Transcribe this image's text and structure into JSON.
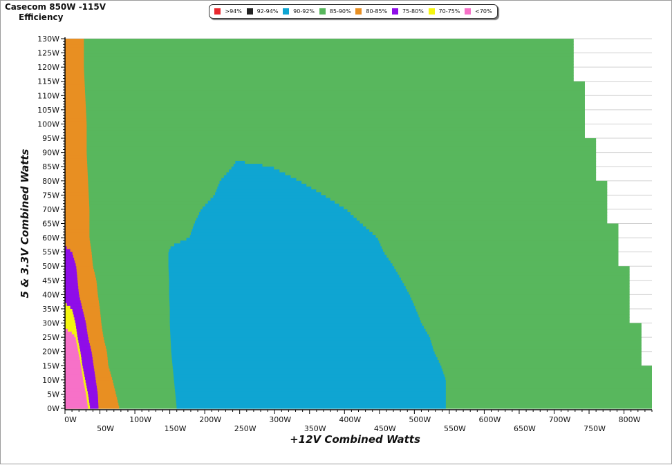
{
  "chart_data": {
    "type": "heatmap",
    "title": "Casecom 850W -115V",
    "subtitle": "Efficiency",
    "xlabel": "+12V Combined Watts",
    "ylabel": "5 & 3.3V Combined Watts",
    "xlim": [
      0,
      840
    ],
    "ylim": [
      0,
      130
    ],
    "x_ticks": [
      0,
      50,
      100,
      150,
      200,
      250,
      300,
      350,
      400,
      450,
      500,
      550,
      600,
      650,
      700,
      750,
      800
    ],
    "x_tick_labels": [
      "0W",
      "50W",
      "100W",
      "150W",
      "200W",
      "250W",
      "300W",
      "350W",
      "400W",
      "450W",
      "500W",
      "550W",
      "600W",
      "650W",
      "700W",
      "750W",
      "800W"
    ],
    "y_ticks": [
      0,
      5,
      10,
      15,
      20,
      25,
      30,
      35,
      40,
      45,
      50,
      55,
      60,
      65,
      70,
      75,
      80,
      85,
      90,
      95,
      100,
      105,
      110,
      115,
      120,
      125,
      130
    ],
    "y_tick_labels": [
      "0W",
      "5W",
      "10W",
      "15W",
      "20W",
      "25W",
      "30W",
      "35W",
      "40W",
      "45W",
      "50W",
      "55W",
      "60W",
      "65W",
      "70W",
      "75W",
      "80W",
      "85W",
      "90W",
      "95W",
      "100W",
      "105W",
      "110W",
      "115W",
      "120W",
      "125W",
      "130W"
    ],
    "grid": true,
    "legend": {
      "placement": "top-center",
      "entries": [
        {
          "label": ">94%",
          "color": "#e8282e"
        },
        {
          "label": "92-94%",
          "color": "#222222"
        },
        {
          "label": "90-92%",
          "color": "#0fa5d2"
        },
        {
          "label": "85-90%",
          "color": "#58b75d"
        },
        {
          "label": "80-85%",
          "color": "#e88f22"
        },
        {
          "label": "75-80%",
          "color": "#8f0de8"
        },
        {
          "label": "70-75%",
          "color": "#f5f510"
        },
        {
          "label": "<70%",
          "color": "#f771c8"
        }
      ]
    },
    "regions": {
      "outer_max_x_by_load": [
        [
          0,
          840
        ],
        [
          5,
          840
        ],
        [
          10,
          840
        ],
        [
          15,
          840
        ],
        [
          20,
          825
        ],
        [
          25,
          825
        ],
        [
          30,
          825
        ],
        [
          35,
          808
        ],
        [
          40,
          808
        ],
        [
          45,
          808
        ],
        [
          50,
          808
        ],
        [
          55,
          792
        ],
        [
          60,
          792
        ],
        [
          65,
          792
        ],
        [
          70,
          776
        ],
        [
          75,
          776
        ],
        [
          80,
          776
        ],
        [
          85,
          760
        ],
        [
          90,
          760
        ],
        [
          95,
          760
        ],
        [
          100,
          744
        ],
        [
          105,
          744
        ],
        [
          110,
          744
        ],
        [
          115,
          744
        ],
        [
          120,
          728
        ],
        [
          125,
          728
        ],
        [
          130,
          728
        ]
      ],
      "band_90_92": {
        "left_edge": [
          [
            0,
            160
          ],
          [
            5,
            158
          ],
          [
            10,
            156
          ],
          [
            15,
            154
          ],
          [
            20,
            152
          ],
          [
            25,
            151
          ],
          [
            30,
            150
          ],
          [
            35,
            150
          ],
          [
            40,
            149
          ],
          [
            45,
            149
          ],
          [
            50,
            148
          ],
          [
            55,
            148
          ],
          [
            57,
            152
          ],
          [
            60,
            178
          ],
          [
            65,
            185
          ],
          [
            70,
            195
          ],
          [
            75,
            214
          ],
          [
            80,
            222
          ],
          [
            85,
            240
          ],
          [
            87,
            245
          ]
        ],
        "right_edge": [
          [
            0,
            545
          ],
          [
            5,
            545
          ],
          [
            10,
            545
          ],
          [
            15,
            538
          ],
          [
            20,
            528
          ],
          [
            25,
            522
          ],
          [
            30,
            510
          ],
          [
            35,
            502
          ],
          [
            40,
            493
          ],
          [
            45,
            482
          ],
          [
            50,
            470
          ],
          [
            55,
            456
          ],
          [
            60,
            447
          ],
          [
            65,
            424
          ],
          [
            70,
            402
          ],
          [
            75,
            370
          ],
          [
            80,
            335
          ],
          [
            85,
            295
          ],
          [
            87,
            245
          ]
        ]
      },
      "band_80_85_right_edge": [
        [
          0,
          78
        ],
        [
          5,
          73
        ],
        [
          10,
          68
        ],
        [
          15,
          62
        ],
        [
          20,
          60
        ],
        [
          25,
          55
        ],
        [
          30,
          52
        ],
        [
          35,
          50
        ],
        [
          40,
          47
        ],
        [
          45,
          45
        ],
        [
          50,
          40
        ],
        [
          55,
          38
        ],
        [
          60,
          35
        ],
        [
          70,
          35
        ],
        [
          80,
          33
        ],
        [
          90,
          31
        ],
        [
          100,
          31
        ],
        [
          110,
          29
        ],
        [
          120,
          27
        ],
        [
          130,
          27
        ]
      ],
      "band_75_80_right_edge": [
        [
          0,
          48
        ],
        [
          5,
          47
        ],
        [
          10,
          44
        ],
        [
          15,
          41
        ],
        [
          20,
          38
        ],
        [
          25,
          33
        ],
        [
          30,
          30
        ],
        [
          35,
          25
        ],
        [
          40,
          20
        ],
        [
          45,
          18
        ],
        [
          50,
          16
        ],
        [
          55,
          10
        ],
        [
          57,
          0
        ]
      ],
      "band_70_75_right_edge": [
        [
          0,
          36
        ],
        [
          5,
          33
        ],
        [
          10,
          29
        ],
        [
          15,
          25
        ],
        [
          20,
          22
        ],
        [
          25,
          18
        ],
        [
          30,
          15
        ],
        [
          35,
          10
        ],
        [
          37,
          0
        ]
      ],
      "band_under_70_right_edge": [
        [
          0,
          33
        ],
        [
          5,
          30
        ],
        [
          10,
          26
        ],
        [
          15,
          23
        ],
        [
          20,
          19
        ],
        [
          25,
          15
        ],
        [
          27,
          8
        ],
        [
          28,
          0
        ]
      ]
    }
  }
}
